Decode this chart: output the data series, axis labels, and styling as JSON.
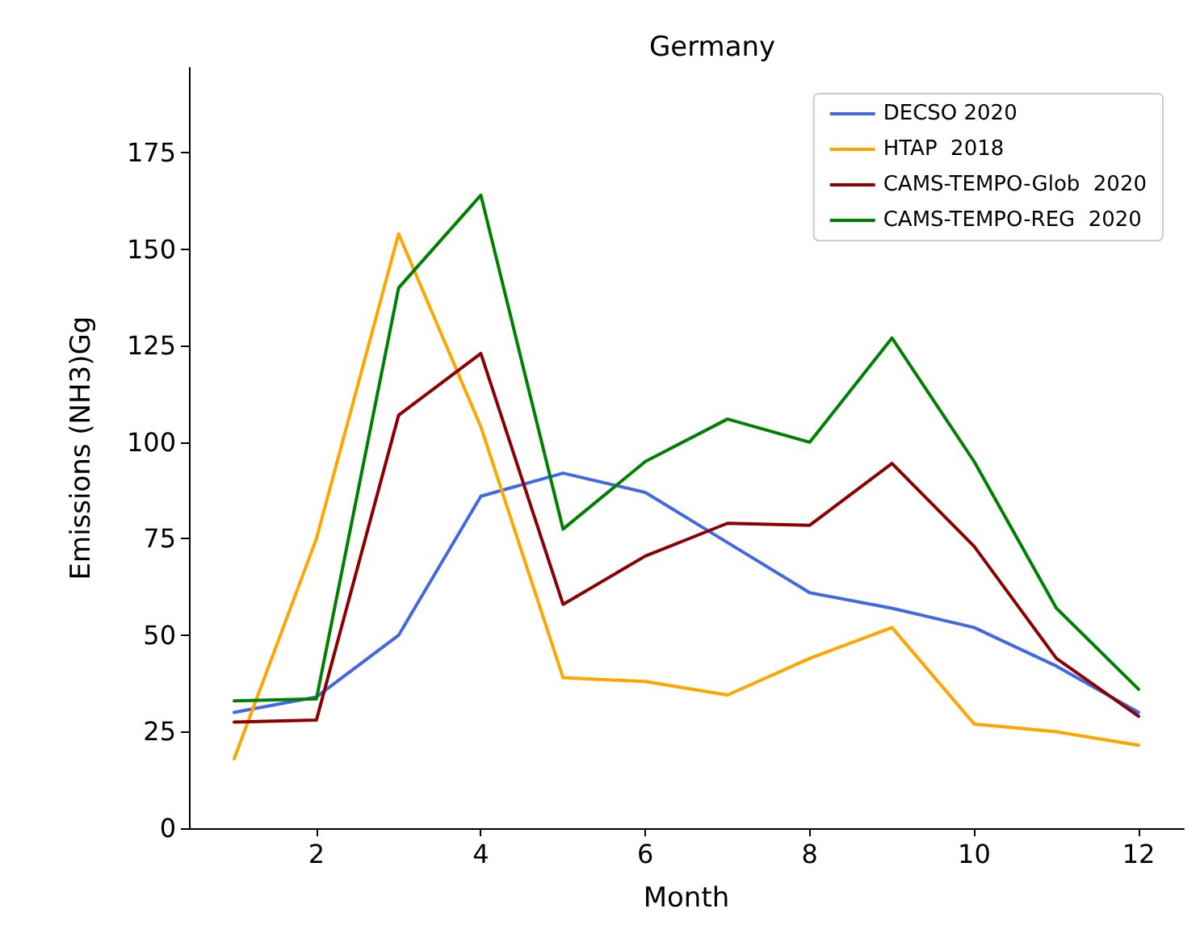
{
  "chart_data": {
    "type": "line",
    "title": "Germany",
    "xlabel": "Month",
    "ylabel": "Emissions (NH3)Gg",
    "x": [
      1,
      2,
      3,
      4,
      5,
      6,
      7,
      8,
      9,
      10,
      11,
      12
    ],
    "series": [
      {
        "name": "DECSO 2020",
        "color": "#4169e1",
        "values": [
          30,
          34,
          50,
          86,
          92,
          87,
          74,
          61,
          57,
          52,
          42,
          30
        ]
      },
      {
        "name": "HTAP  2018",
        "color": "#ffa500",
        "values": [
          18,
          75,
          154,
          104,
          39,
          38,
          34.5,
          44,
          52,
          27,
          25,
          21.5
        ]
      },
      {
        "name": "CAMS-TEMPO-Glob  2020",
        "color": "#8b0000",
        "values": [
          27.5,
          28,
          107,
          123,
          58,
          70.5,
          79,
          78.5,
          94.5,
          73,
          44,
          29
        ]
      },
      {
        "name": "CAMS-TEMPO-REG  2020",
        "color": "#008000",
        "values": [
          33,
          33.5,
          140,
          164,
          77.5,
          95,
          106,
          100,
          127,
          95,
          57,
          36
        ]
      }
    ],
    "xlim": [
      0.45,
      12.55
    ],
    "xticks": [
      2,
      4,
      6,
      8,
      10,
      12
    ],
    "ylim": [
      0,
      197
    ],
    "yticks": [
      0,
      25,
      50,
      75,
      100,
      125,
      150,
      175
    ],
    "grid": false,
    "legend": "top right",
    "marker": "none",
    "line_style": "solid"
  }
}
